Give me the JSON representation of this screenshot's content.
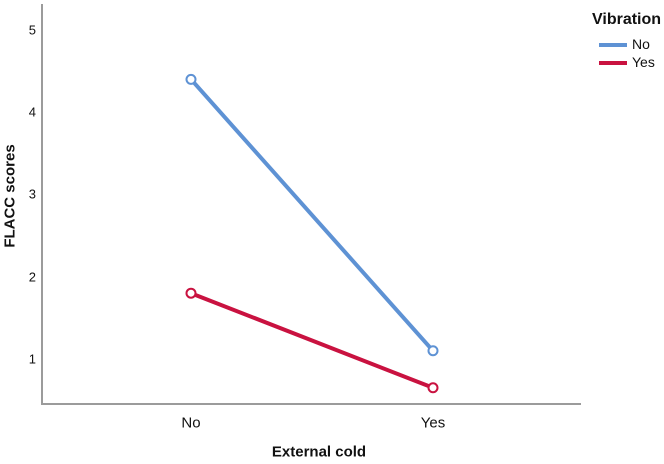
{
  "chart_data": {
    "type": "line",
    "title": "",
    "xlabel": "External cold",
    "ylabel": "FLACC scores",
    "categories": [
      "No",
      "Yes"
    ],
    "series": [
      {
        "name": "No",
        "color": "#5e92d4",
        "values": [
          4.4,
          1.1
        ]
      },
      {
        "name": "Yes",
        "color": "#c91240",
        "values": [
          1.8,
          0.65
        ]
      }
    ],
    "legend_title": "Vibration",
    "legend_position": "top-right",
    "yticks": [
      1,
      2,
      3,
      4,
      5
    ],
    "ylim": [
      0.45,
      5.3
    ],
    "grid": false,
    "axis_color": "#9b9b9b",
    "marker": "open-circle",
    "background": "#ffffff"
  }
}
